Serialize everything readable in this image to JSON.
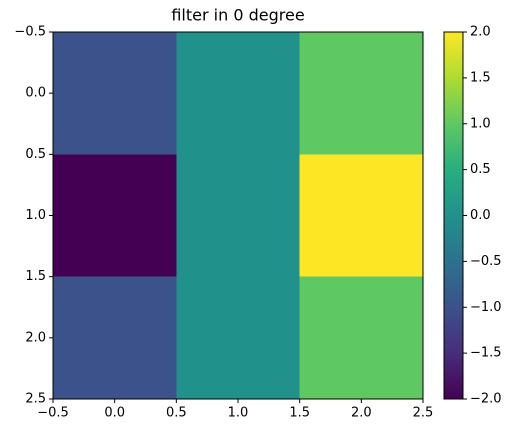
{
  "chart_data": {
    "type": "heatmap",
    "title": "filter in 0 degree",
    "z": [
      [
        -1,
        0,
        1
      ],
      [
        -2,
        0,
        2
      ],
      [
        -1,
        0,
        1
      ]
    ],
    "clim": [
      -2,
      2
    ],
    "colormap": [
      "#440154",
      "#472d7b",
      "#3b528b",
      "#2c728e",
      "#21918c",
      "#28ae80",
      "#5ec962",
      "#addc30",
      "#fde725"
    ],
    "xlim": [
      -0.5,
      2.5
    ],
    "ylim": [
      2.5,
      -0.5
    ],
    "xticks": [
      {
        "value": -0.5,
        "label": "−0.5"
      },
      {
        "value": 0,
        "label": "0.0"
      },
      {
        "value": 0.5,
        "label": "0.5"
      },
      {
        "value": 1,
        "label": "1.0"
      },
      {
        "value": 1.5,
        "label": "1.5"
      },
      {
        "value": 2,
        "label": "2.0"
      },
      {
        "value": 2.5,
        "label": "2.5"
      }
    ],
    "yticks": [
      {
        "value": -0.5,
        "label": "−0.5"
      },
      {
        "value": 0,
        "label": "0.0"
      },
      {
        "value": 0.5,
        "label": "0.5"
      },
      {
        "value": 1,
        "label": "1.0"
      },
      {
        "value": 1.5,
        "label": "1.5"
      },
      {
        "value": 2,
        "label": "2.0"
      },
      {
        "value": 2.5,
        "label": "2.5"
      }
    ],
    "cticks": [
      {
        "value": -2,
        "label": "−2.0"
      },
      {
        "value": -1.5,
        "label": "−1.5"
      },
      {
        "value": -1,
        "label": "−1.0"
      },
      {
        "value": -0.5,
        "label": "−0.5"
      },
      {
        "value": 0,
        "label": "0.0"
      },
      {
        "value": 0.5,
        "label": "0.5"
      },
      {
        "value": 1,
        "label": "1.0"
      },
      {
        "value": 1.5,
        "label": "1.5"
      },
      {
        "value": 2,
        "label": "2.0"
      }
    ]
  }
}
